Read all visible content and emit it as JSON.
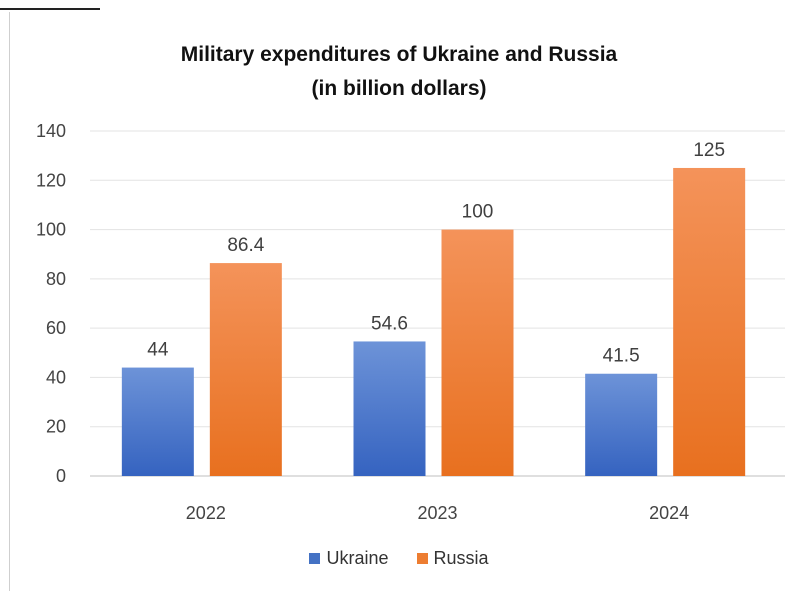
{
  "chart_data": {
    "type": "bar",
    "title": "Military expenditures of Ukraine and Russia",
    "subtitle": "(in billion dollars)",
    "categories": [
      "2022",
      "2023",
      "2024"
    ],
    "series": [
      {
        "name": "Ukraine",
        "values": [
          44,
          54.6,
          41.5
        ],
        "labels": [
          "44",
          "54.6",
          "41.5"
        ],
        "color": "#4472c4"
      },
      {
        "name": "Russia",
        "values": [
          86.4,
          100,
          125
        ],
        "labels": [
          "86.4",
          "100",
          "125"
        ],
        "color": "#ed7d31"
      }
    ],
    "ylim": [
      0,
      140
    ],
    "yticks": [
      "0",
      "20",
      "40",
      "60",
      "80",
      "100",
      "120",
      "140"
    ],
    "grid": true,
    "legend_position": "bottom"
  }
}
